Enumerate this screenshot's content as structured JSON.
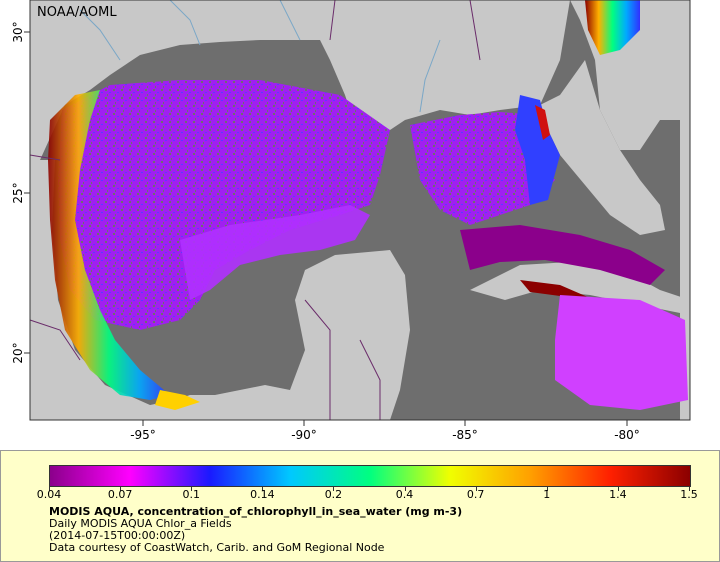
{
  "map": {
    "credit": "NOAA/AOML",
    "lon_ticks": [
      "-95°",
      "-90°",
      "-85°",
      "-80°"
    ],
    "lat_ticks": [
      "30°",
      "25°",
      "20°"
    ],
    "colors": {
      "land": "#c8c8c8",
      "no_data_ocean": "#6e6e6e",
      "borders": "#6a2c6a",
      "rivers": "#7aa7c7"
    }
  },
  "colorbar": {
    "labels": [
      "0.04",
      "0.07",
      "0.1",
      "0.14",
      "0.2",
      "0.4",
      "0.7",
      "1",
      "1.4",
      "1.5"
    ],
    "colors": [
      "#8b008b",
      "#ff00ff",
      "#1a1aff",
      "#00c8ff",
      "#00ff80",
      "#f0ff00",
      "#ffa000",
      "#ff2000",
      "#8b0000"
    ]
  },
  "legend": {
    "title": "MODIS AQUA, concentration_of_chlorophyll_in_sea_water (mg m-3)",
    "line1": "Daily MODIS AQUA Chlor_a Fields",
    "line2": "(2014-07-15T00:00:00Z)",
    "line3": "Data courtesy of CoastWatch, Carib. and GoM Regional Node"
  }
}
